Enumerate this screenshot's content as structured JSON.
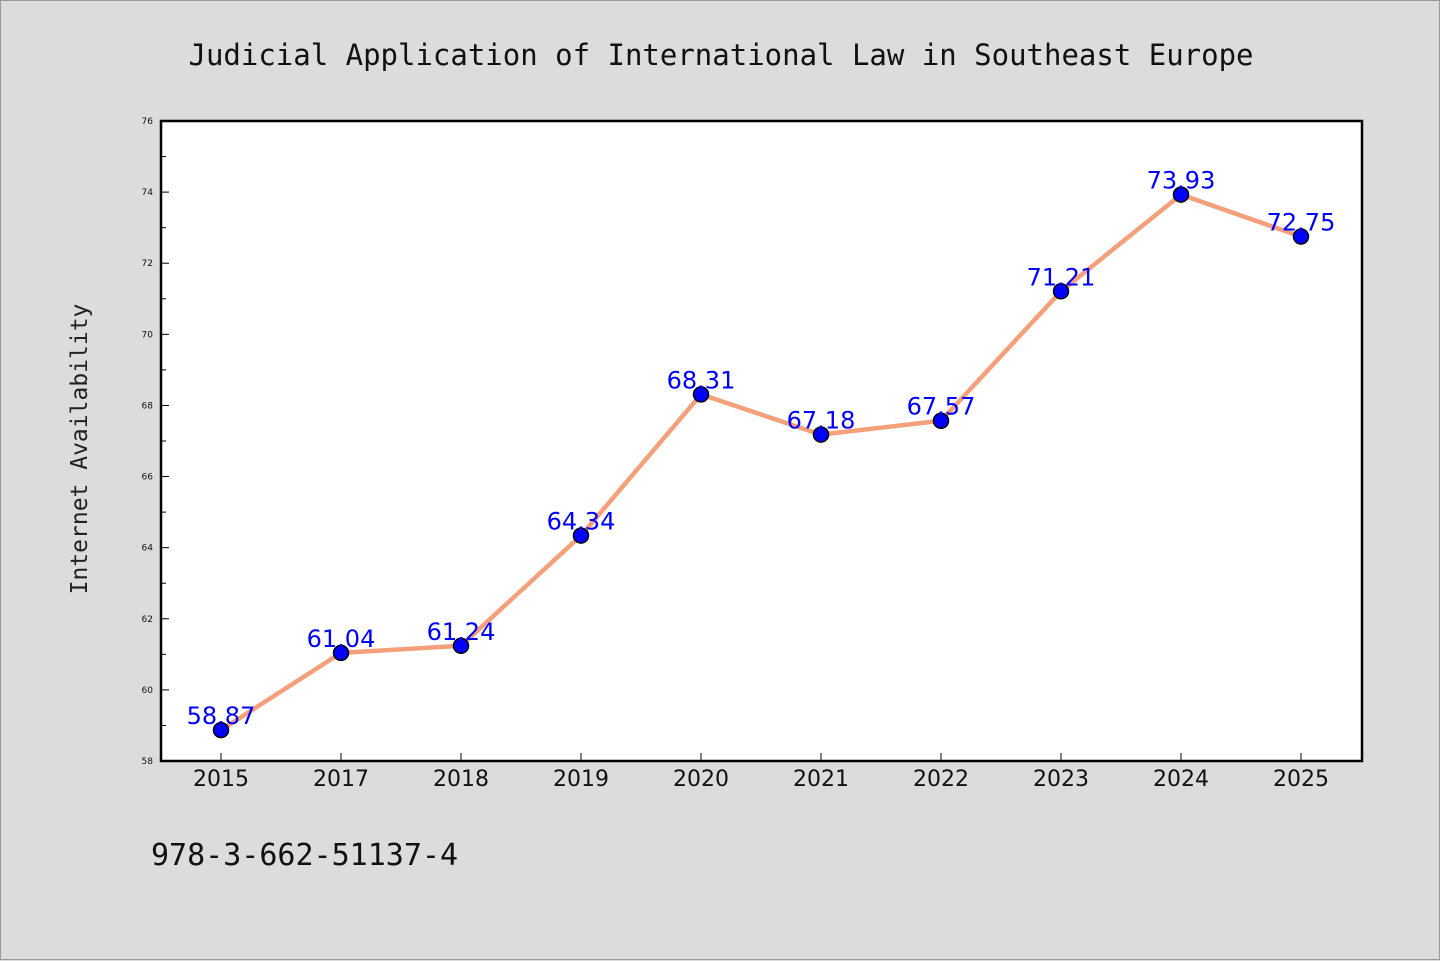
{
  "chart_data": {
    "type": "line",
    "title": "Judicial Application of International Law in Southeast Europe",
    "xlabel": "",
    "ylabel": "Internet Availability",
    "categories": [
      "2015",
      "2017",
      "2018",
      "2019",
      "2020",
      "2021",
      "2022",
      "2023",
      "2024",
      "2025"
    ],
    "series": [
      {
        "values": [
          58.87,
          61.04,
          61.24,
          64.34,
          68.31,
          67.18,
          67.57,
          71.21,
          73.93,
          72.75
        ],
        "labels": [
          "58.87",
          "61.04",
          "61.24",
          "64.34",
          "68.31",
          "67.18",
          "67.57",
          "71.21",
          "73.93",
          "72.75"
        ]
      }
    ],
    "ylim": [
      58,
      76
    ],
    "yticks": [
      "58",
      "60",
      "62",
      "64",
      "66",
      "68",
      "70",
      "72",
      "74",
      "76"
    ],
    "grid": false,
    "legend": "none",
    "colors": {
      "line": "#f4a07a",
      "marker": "#0000ff",
      "marker_edge": "#000000",
      "data_label": "#0000ff",
      "plot_background": "#ffffff",
      "page_background": "#dcdcdc"
    }
  },
  "footer": {
    "isbn": "978-3-662-51137-4"
  }
}
